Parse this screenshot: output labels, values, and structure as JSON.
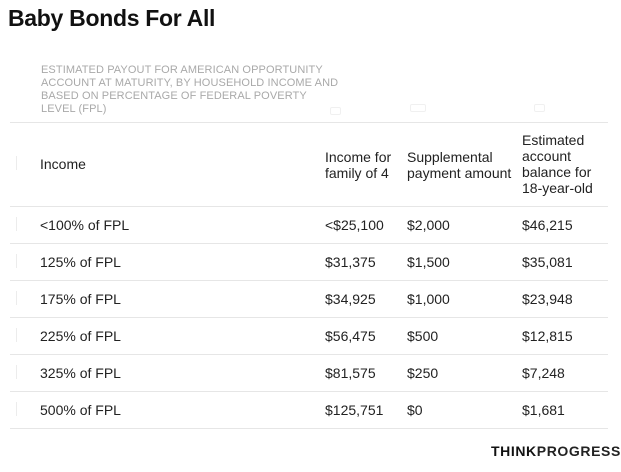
{
  "title": "Baby Bonds For All",
  "caption": "ESTIMATED PAYOUT FOR AMERICAN OPPORTUNITY ACCOUNT AT MATURITY, BY HOUSEHOLD INCOME AND BASED ON PERCENTAGE OF FEDERAL POVERTY LEVEL (FPL)",
  "table": {
    "headers": {
      "income": "Income",
      "family": "Income for family of 4",
      "supplemental": "Supplemental payment amount",
      "balance": "Estimated account balance for 18-year-old"
    },
    "rows": [
      {
        "income": "<100% of FPL",
        "family": "<$25,100",
        "supplemental": "$2,000",
        "balance": "$46,215"
      },
      {
        "income": "125% of FPL",
        "family": "$31,375",
        "supplemental": "$1,500",
        "balance": "$35,081"
      },
      {
        "income": "175% of FPL",
        "family": "$34,925",
        "supplemental": "$1,000",
        "balance": "$23,948"
      },
      {
        "income": "225% of FPL",
        "family": "$56,475",
        "supplemental": "$500",
        "balance": "$12,815"
      },
      {
        "income": "325% of FPL",
        "family": "$81,575",
        "supplemental": "$250",
        "balance": "$7,248"
      },
      {
        "income": "500% of FPL",
        "family": "$125,751",
        "supplemental": "$0",
        "balance": "$1,681"
      }
    ]
  },
  "logo": {
    "part1": "THINK",
    "part2": "PROGRESS"
  }
}
